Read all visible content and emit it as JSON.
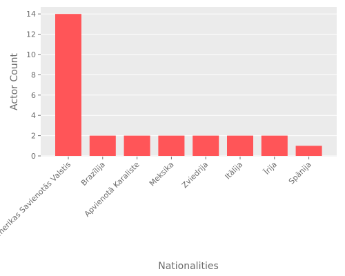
{
  "chart_data": {
    "type": "bar",
    "categories": [
      "Amerikas Savienotās Valstis",
      "Brazīlija",
      "Apvienotā Karaliste",
      "Meksika",
      "Zviedrija",
      "Itālija",
      "Īrija",
      "Spānija"
    ],
    "values": [
      14,
      2,
      2,
      2,
      2,
      2,
      2,
      1
    ],
    "title": "",
    "xlabel": "Nationalities",
    "ylabel": "Actor Count",
    "ylim": [
      0,
      14.7
    ],
    "yticks": [
      0,
      2,
      4,
      6,
      8,
      10,
      12,
      14
    ],
    "grid": true,
    "colors": {
      "bar": "#ff5558",
      "background": "#ebebeb",
      "grid": "#ffffff",
      "text": "#6b6b6b"
    }
  }
}
